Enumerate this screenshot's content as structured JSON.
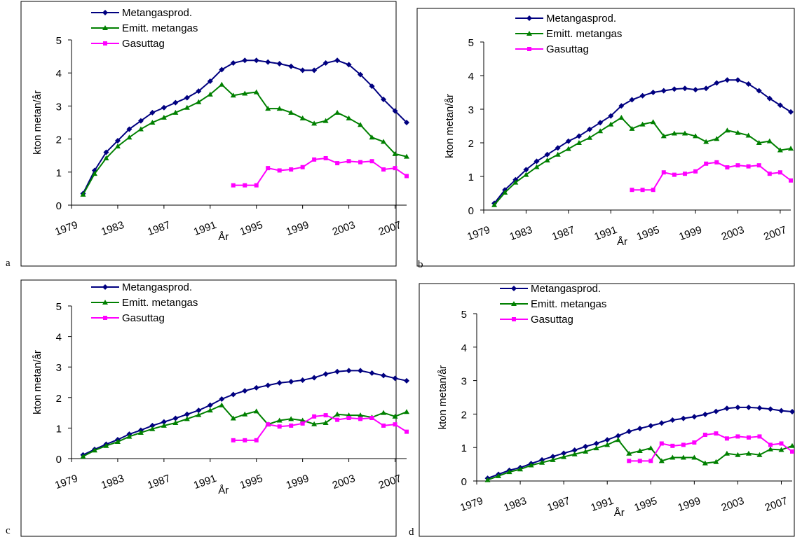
{
  "chart_data": [
    {
      "type": "line",
      "panel_label": "a",
      "ylabel": "kton metan/år",
      "xlabel": "År",
      "x": [
        1980,
        1981,
        1982,
        1983,
        1984,
        1985,
        1986,
        1987,
        1988,
        1989,
        1990,
        1991,
        1992,
        1993,
        1994,
        1995,
        1996,
        1997,
        1998,
        1999,
        2000,
        2001,
        2002,
        2003,
        2004,
        2005,
        2006,
        2007,
        2008
      ],
      "xlim": [
        1979,
        2008
      ],
      "xticks": [
        1979,
        1983,
        1987,
        1991,
        1995,
        1999,
        2003,
        2007
      ],
      "ylim": [
        0,
        5
      ],
      "yticks": [
        0,
        1,
        2,
        3,
        4,
        5
      ],
      "legend": "top",
      "series": [
        {
          "name": "Metangasprod.",
          "color": "#000080",
          "values": [
            0.35,
            1.05,
            1.6,
            1.95,
            2.3,
            2.55,
            2.8,
            2.95,
            3.1,
            3.25,
            3.45,
            3.75,
            4.1,
            4.3,
            4.38,
            4.38,
            4.33,
            4.28,
            4.2,
            4.08,
            4.08,
            4.3,
            4.38,
            4.25,
            3.95,
            3.6,
            3.2,
            2.85,
            2.5
          ]
        },
        {
          "name": "Emitt. metangas",
          "color": "#008000",
          "values": [
            0.32,
            0.95,
            1.42,
            1.78,
            2.05,
            2.3,
            2.5,
            2.65,
            2.8,
            2.95,
            3.12,
            3.35,
            3.65,
            3.32,
            3.38,
            3.42,
            2.92,
            2.92,
            2.8,
            2.63,
            2.47,
            2.55,
            2.8,
            2.63,
            2.43,
            2.05,
            1.92,
            1.55,
            1.47
          ]
        },
        {
          "name": "Gasuttag",
          "color": "#FF00FF",
          "values": [
            null,
            null,
            null,
            null,
            null,
            null,
            null,
            null,
            null,
            null,
            null,
            null,
            null,
            0.6,
            0.6,
            0.6,
            1.12,
            1.05,
            1.08,
            1.15,
            1.38,
            1.42,
            1.27,
            1.33,
            1.3,
            1.33,
            1.08,
            1.12,
            0.88
          ]
        }
      ]
    },
    {
      "type": "line",
      "panel_label": "b",
      "ylabel": "kton metan/år",
      "xlabel": "År",
      "x": [
        1980,
        1981,
        1982,
        1983,
        1984,
        1985,
        1986,
        1987,
        1988,
        1989,
        1990,
        1991,
        1992,
        1993,
        1994,
        1995,
        1996,
        1997,
        1998,
        1999,
        2000,
        2001,
        2002,
        2003,
        2004,
        2005,
        2006,
        2007,
        2008
      ],
      "xlim": [
        1979,
        2008
      ],
      "xticks": [
        1979,
        1983,
        1987,
        1991,
        1995,
        1999,
        2003,
        2007
      ],
      "ylim": [
        0,
        5
      ],
      "yticks": [
        0,
        1,
        2,
        3,
        4,
        5
      ],
      "legend": "top",
      "series": [
        {
          "name": "Metangasprod.",
          "color": "#000080",
          "values": [
            0.2,
            0.6,
            0.9,
            1.2,
            1.45,
            1.65,
            1.85,
            2.05,
            2.2,
            2.4,
            2.6,
            2.8,
            3.1,
            3.28,
            3.4,
            3.5,
            3.55,
            3.6,
            3.62,
            3.58,
            3.62,
            3.78,
            3.87,
            3.87,
            3.75,
            3.55,
            3.32,
            3.12,
            2.92
          ]
        },
        {
          "name": "Emitt. metangas",
          "color": "#008000",
          "values": [
            0.15,
            0.52,
            0.82,
            1.05,
            1.28,
            1.48,
            1.65,
            1.82,
            2.0,
            2.15,
            2.35,
            2.55,
            2.75,
            2.42,
            2.55,
            2.62,
            2.2,
            2.28,
            2.28,
            2.2,
            2.03,
            2.12,
            2.37,
            2.3,
            2.22,
            2.0,
            2.05,
            1.78,
            1.83
          ]
        },
        {
          "name": "Gasuttag",
          "color": "#FF00FF",
          "values": [
            null,
            null,
            null,
            null,
            null,
            null,
            null,
            null,
            null,
            null,
            null,
            null,
            null,
            0.6,
            0.6,
            0.6,
            1.12,
            1.05,
            1.08,
            1.15,
            1.38,
            1.42,
            1.27,
            1.33,
            1.3,
            1.33,
            1.08,
            1.12,
            0.88
          ]
        }
      ]
    },
    {
      "type": "line",
      "panel_label": "c",
      "ylabel": "kton metan/år",
      "xlabel": "År",
      "x": [
        1980,
        1981,
        1982,
        1983,
        1984,
        1985,
        1986,
        1987,
        1988,
        1989,
        1990,
        1991,
        1992,
        1993,
        1994,
        1995,
        1996,
        1997,
        1998,
        1999,
        2000,
        2001,
        2002,
        2003,
        2004,
        2005,
        2006,
        2007,
        2008
      ],
      "xlim": [
        1979,
        2008
      ],
      "xticks": [
        1979,
        1983,
        1987,
        1991,
        1995,
        1999,
        2003,
        2007
      ],
      "ylim": [
        0,
        5
      ],
      "yticks": [
        0,
        1,
        2,
        3,
        4,
        5
      ],
      "legend": "top",
      "series": [
        {
          "name": "Metangasprod.",
          "color": "#000080",
          "values": [
            0.12,
            0.3,
            0.47,
            0.62,
            0.8,
            0.93,
            1.08,
            1.2,
            1.32,
            1.45,
            1.58,
            1.75,
            1.95,
            2.1,
            2.22,
            2.32,
            2.4,
            2.48,
            2.52,
            2.57,
            2.65,
            2.77,
            2.85,
            2.88,
            2.88,
            2.8,
            2.72,
            2.63,
            2.55
          ]
        },
        {
          "name": "Emitt. metangas",
          "color": "#008000",
          "values": [
            0.07,
            0.27,
            0.42,
            0.55,
            0.72,
            0.85,
            0.97,
            1.08,
            1.17,
            1.3,
            1.43,
            1.58,
            1.75,
            1.32,
            1.45,
            1.55,
            1.12,
            1.25,
            1.3,
            1.25,
            1.13,
            1.17,
            1.45,
            1.42,
            1.42,
            1.35,
            1.5,
            1.38,
            1.53
          ]
        },
        {
          "name": "Gasuttag",
          "color": "#FF00FF",
          "values": [
            null,
            null,
            null,
            null,
            null,
            null,
            null,
            null,
            null,
            null,
            null,
            null,
            null,
            0.6,
            0.6,
            0.6,
            1.12,
            1.05,
            1.08,
            1.15,
            1.38,
            1.42,
            1.27,
            1.33,
            1.3,
            1.33,
            1.08,
            1.12,
            0.88
          ]
        }
      ]
    },
    {
      "type": "line",
      "panel_label": "d",
      "ylabel": "kton metan/år",
      "xlabel": "År",
      "x": [
        1980,
        1981,
        1982,
        1983,
        1984,
        1985,
        1986,
        1987,
        1988,
        1989,
        1990,
        1991,
        1992,
        1993,
        1994,
        1995,
        1996,
        1997,
        1998,
        1999,
        2000,
        2001,
        2002,
        2003,
        2004,
        2005,
        2006,
        2007,
        2008
      ],
      "xlim": [
        1979,
        2008
      ],
      "xticks": [
        1979,
        1983,
        1987,
        1991,
        1995,
        1999,
        2003,
        2007
      ],
      "ylim": [
        0,
        5
      ],
      "yticks": [
        0,
        1,
        2,
        3,
        4,
        5
      ],
      "legend": "top",
      "series": [
        {
          "name": "Metangasprod.",
          "color": "#000080",
          "values": [
            0.08,
            0.2,
            0.32,
            0.4,
            0.52,
            0.63,
            0.73,
            0.83,
            0.92,
            1.03,
            1.12,
            1.23,
            1.35,
            1.48,
            1.57,
            1.65,
            1.73,
            1.82,
            1.87,
            1.92,
            1.99,
            2.08,
            2.17,
            2.2,
            2.2,
            2.18,
            2.15,
            2.1,
            2.07
          ]
        },
        {
          "name": "Emitt. metangas",
          "color": "#008000",
          "values": [
            0.03,
            0.15,
            0.27,
            0.35,
            0.47,
            0.55,
            0.63,
            0.72,
            0.8,
            0.88,
            0.98,
            1.08,
            1.23,
            0.82,
            0.9,
            0.98,
            0.6,
            0.7,
            0.7,
            0.7,
            0.53,
            0.57,
            0.82,
            0.78,
            0.82,
            0.78,
            0.95,
            0.93,
            1.05
          ]
        },
        {
          "name": "Gasuttag",
          "color": "#FF00FF",
          "values": [
            null,
            null,
            null,
            null,
            null,
            null,
            null,
            null,
            null,
            null,
            null,
            null,
            null,
            0.6,
            0.6,
            0.6,
            1.12,
            1.05,
            1.08,
            1.15,
            1.38,
            1.42,
            1.27,
            1.33,
            1.3,
            1.33,
            1.08,
            1.12,
            0.88
          ]
        }
      ]
    }
  ]
}
